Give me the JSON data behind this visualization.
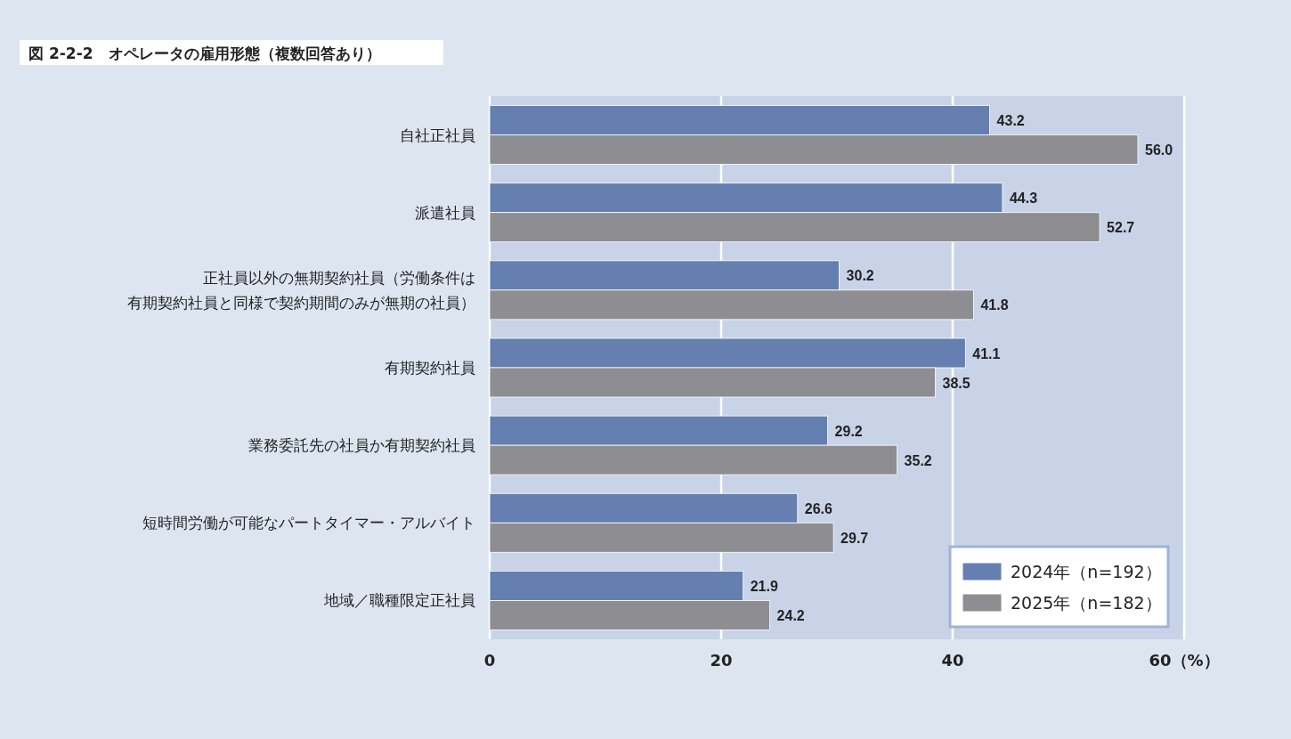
{
  "chart_data": {
    "type": "bar",
    "orientation": "horizontal",
    "title": "図 2-2-2　オペレータの雇用形態（複数回答あり）",
    "categories": [
      "自社正社員",
      "派遣社員",
      "正社員以外の無期契約社員（労働条件は有期契約社員と同様で契約期間のみが無期の社員）",
      "有期契約社員",
      "業務委託先の社員か有期契約社員",
      "短時間労働が可能なパートタイマー・アルバイト",
      "地域／職種限定正社員"
    ],
    "series": [
      {
        "name": "2024年（n=192）",
        "color": "#6580b0",
        "values": [
          43.2,
          44.3,
          30.2,
          41.1,
          29.2,
          26.6,
          21.9
        ],
        "value_labels": [
          "43.2",
          "44.3",
          "30.2",
          "41.1",
          "29.2",
          "26.6",
          "21.9"
        ]
      },
      {
        "name": "2025年（n=182）",
        "color": "#8e8e92",
        "values": [
          56.0,
          52.7,
          41.8,
          38.5,
          35.2,
          29.7,
          24.2
        ],
        "value_labels": [
          "56.0",
          "52.7",
          "41.8",
          "38.5",
          "35.2",
          "29.7",
          "24.2"
        ]
      }
    ],
    "xlim": [
      0,
      60
    ],
    "xticks": [
      0,
      20,
      40,
      {
        "value": 60,
        "label": "60（%）"
      }
    ],
    "grid": "x",
    "legend": "bottom right"
  }
}
